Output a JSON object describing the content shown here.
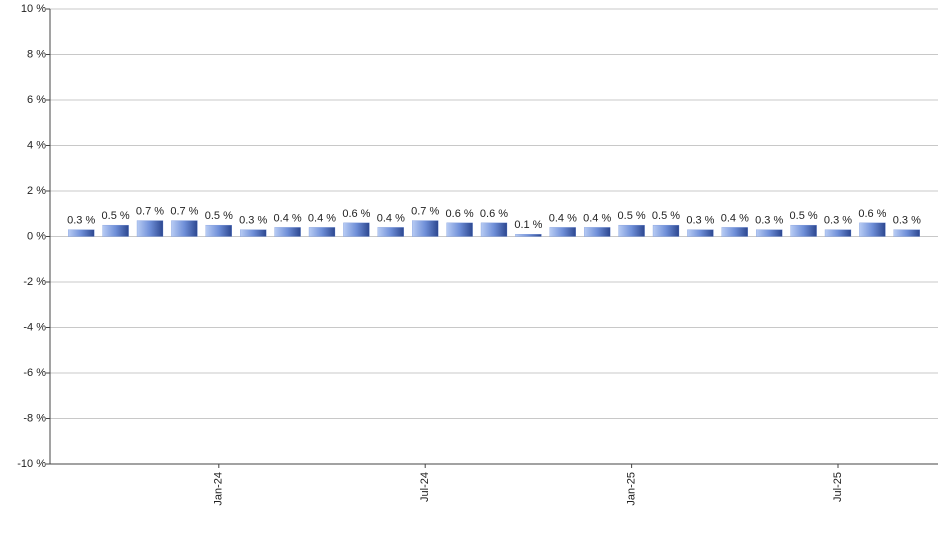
{
  "chart_data": {
    "type": "bar",
    "categories": [
      null,
      null,
      null,
      null,
      "Jan-24",
      null,
      null,
      null,
      null,
      null,
      "Jul-24",
      null,
      null,
      null,
      null,
      null,
      "Jan-25",
      null,
      null,
      null,
      null,
      null,
      "Jul-25",
      null,
      null
    ],
    "values": [
      0.3,
      0.5,
      0.7,
      0.7,
      0.5,
      0.3,
      0.4,
      0.4,
      0.6,
      0.4,
      0.7,
      0.6,
      0.6,
      0.1,
      0.4,
      0.4,
      0.5,
      0.5,
      0.3,
      0.4,
      0.3,
      0.5,
      0.3,
      0.6,
      0.3
    ],
    "value_labels": [
      "0.3 %",
      "0.5 %",
      "0.7 %",
      "0.7 %",
      "0.5 %",
      "0.3 %",
      "0.4 %",
      "0.4 %",
      "0.6 %",
      "0.4 %",
      "0.7 %",
      "0.6 %",
      "0.6 %",
      "0.1 %",
      "0.4 %",
      "0.4 %",
      "0.5 %",
      "0.5 %",
      "0.3 %",
      "0.4 %",
      "0.3 %",
      "0.5 %",
      "0.3 %",
      "0.6 %",
      "0.3 %"
    ],
    "color": "#6f8fd8",
    "ylim": [
      -10,
      10
    ],
    "yticks": [
      {
        "value": -10,
        "label": "-10 %"
      },
      {
        "value": -8,
        "label": "-8 %"
      },
      {
        "value": -6,
        "label": "-6 %"
      },
      {
        "value": -4,
        "label": "-4 %"
      },
      {
        "value": -2,
        "label": "-2 %"
      },
      {
        "value": 0,
        "label": "0 %"
      },
      {
        "value": 2,
        "label": "2 %"
      },
      {
        "value": 4,
        "label": "4 %"
      },
      {
        "value": 6,
        "label": "6 %"
      },
      {
        "value": 8,
        "label": "8 %"
      },
      {
        "value": 10,
        "label": "10 %"
      }
    ],
    "grid": true
  }
}
